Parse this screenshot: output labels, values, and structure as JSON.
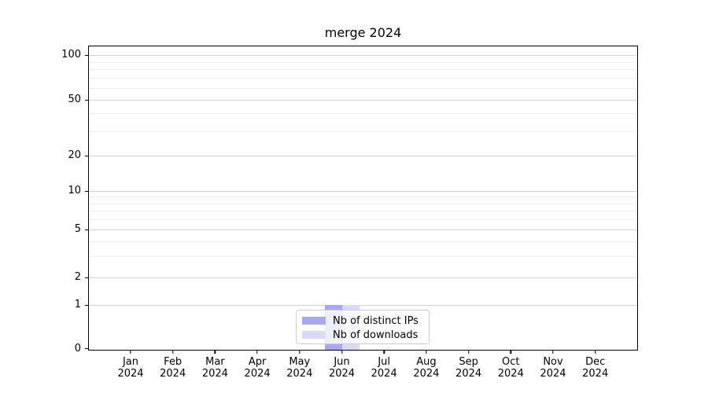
{
  "chart_data": {
    "type": "bar",
    "title": "merge 2024",
    "x_categories": [
      "Jan",
      "Feb",
      "Mar",
      "Apr",
      "May",
      "Jun",
      "Jul",
      "Aug",
      "Sep",
      "Oct",
      "Nov",
      "Dec"
    ],
    "x_year": "2024",
    "series": [
      {
        "name": "Nb of distinct IPs",
        "color": "#a9a9ef",
        "values": [
          0,
          0,
          0,
          0,
          0,
          1,
          0,
          0,
          0,
          0,
          0,
          0
        ]
      },
      {
        "name": "Nb of downloads",
        "color": "#dadaf8",
        "values": [
          0,
          0,
          0,
          0,
          0,
          1,
          0,
          0,
          0,
          0,
          0,
          0
        ]
      }
    ],
    "y_ticks": [
      0,
      1,
      2,
      5,
      10,
      20,
      50,
      100
    ],
    "y_minor_ticks": [
      3,
      4,
      6,
      7,
      8,
      9,
      30,
      40,
      60,
      70,
      80,
      90
    ],
    "y_scale": "log above 1, linear between 0 and 1 (symlog)",
    "ylim": [
      0,
      110
    ],
    "xlabel": "",
    "ylabel": "",
    "grid": "horizontal, major and minor",
    "legend_position": "lower center",
    "colors": {
      "major_grid": "#d4d4d4",
      "minor_grid": "#ededed",
      "axis": "#000000",
      "background": "#ffffff"
    }
  }
}
